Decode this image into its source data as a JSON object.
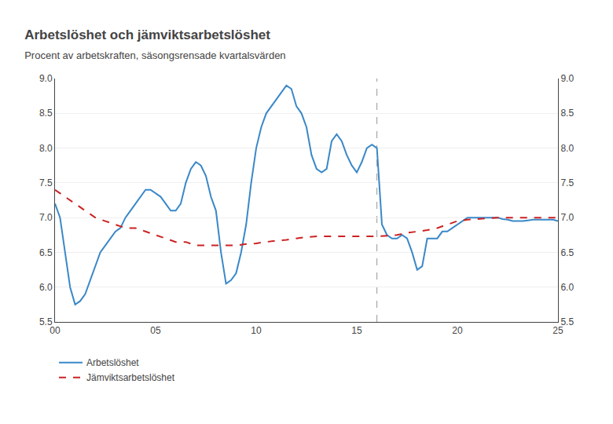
{
  "chart_data": {
    "type": "line",
    "title": "Arbetslöshet och jämviktsarbetslöshet",
    "subtitle": "Procent av arbetskraften, säsongsrensade kvartalsvärden",
    "xlim": [
      0,
      25
    ],
    "xticks": [
      {
        "value": 0,
        "label": "00"
      },
      {
        "value": 5,
        "label": "05"
      },
      {
        "value": 10,
        "label": "10"
      },
      {
        "value": 15,
        "label": "15"
      },
      {
        "value": 20,
        "label": "20"
      },
      {
        "value": 25,
        "label": "25"
      }
    ],
    "ylim": [
      5.5,
      9.0
    ],
    "yticks": [
      5.5,
      {
        "value": 6.0,
        "label": "6.0"
      },
      6.5,
      {
        "value": 7.0,
        "label": "7.0"
      },
      7.5,
      {
        "value": 8.0,
        "label": "8.0"
      },
      8.5,
      {
        "value": 9.0,
        "label": "9.0"
      }
    ],
    "y2lim": [
      5.5,
      9.0
    ],
    "y2ticks": [
      5.5,
      {
        "value": 6.0,
        "label": "6.0"
      },
      6.5,
      {
        "value": 7.0,
        "label": "7.0"
      },
      7.5,
      {
        "value": 8.0,
        "label": "8.0"
      },
      8.5,
      {
        "value": 9.0,
        "label": "9.0"
      }
    ],
    "grid": "y",
    "legend": "bottom",
    "vline_x": 16,
    "series": [
      {
        "name": "Arbetslöshet",
        "color": "#3a88c8",
        "line_style": "solid",
        "x": [
          0,
          0.25,
          0.5,
          0.75,
          1,
          1.25,
          1.5,
          1.75,
          2,
          2.25,
          2.5,
          2.75,
          3,
          3.25,
          3.5,
          3.75,
          4,
          4.25,
          4.5,
          4.75,
          5,
          5.25,
          5.5,
          5.75,
          6,
          6.25,
          6.5,
          6.75,
          7,
          7.25,
          7.5,
          7.75,
          8,
          8.25,
          8.5,
          8.75,
          9,
          9.25,
          9.5,
          9.75,
          10,
          10.25,
          10.5,
          10.75,
          11,
          11.25,
          11.5,
          11.75,
          12,
          12.25,
          12.5,
          12.75,
          13,
          13.25,
          13.5,
          13.75,
          14,
          14.25,
          14.5,
          14.75,
          15,
          15.25,
          15.5,
          15.75,
          16,
          16.25,
          16.5,
          16.75,
          17,
          17.25,
          17.5,
          17.75,
          18,
          18.25,
          18.5,
          18.75,
          19,
          19.25,
          19.5,
          19.75,
          20,
          20.25,
          20.5,
          20.75,
          21,
          21.25,
          21.5,
          21.75,
          22,
          22.25,
          22.5,
          22.75,
          23,
          23.25,
          23.5,
          23.75,
          24,
          24.25,
          24.5,
          24.75,
          25
        ],
        "values": [
          7.2,
          7.0,
          6.5,
          6.0,
          5.75,
          5.8,
          5.9,
          6.1,
          6.3,
          6.5,
          6.6,
          6.7,
          6.8,
          6.85,
          7.0,
          7.1,
          7.2,
          7.3,
          7.4,
          7.4,
          7.35,
          7.3,
          7.2,
          7.1,
          7.1,
          7.2,
          7.5,
          7.7,
          7.8,
          7.75,
          7.6,
          7.3,
          7.1,
          6.5,
          6.05,
          6.1,
          6.2,
          6.5,
          6.9,
          7.5,
          8.0,
          8.3,
          8.5,
          8.6,
          8.7,
          8.8,
          8.9,
          8.85,
          8.6,
          8.5,
          8.3,
          7.9,
          7.7,
          7.65,
          7.7,
          8.1,
          8.2,
          8.1,
          7.9,
          7.75,
          7.65,
          7.8,
          8.0,
          8.05,
          8.0,
          6.9,
          6.75,
          6.7,
          6.7,
          6.75,
          6.7,
          6.5,
          6.25,
          6.3,
          6.7,
          6.7,
          6.7,
          6.8,
          6.8,
          6.85,
          6.9,
          6.95,
          7.0,
          7.0,
          7.0,
          7.0,
          7.0,
          7.0,
          7.0,
          6.98,
          6.97,
          6.95,
          6.95,
          6.95,
          6.96,
          6.97,
          6.97,
          6.97,
          6.97,
          6.97,
          6.95
        ]
      },
      {
        "name": "Jämviktsarbetslöshet",
        "color": "#cc2222",
        "line_style": "dashed",
        "x": [
          0,
          0.5,
          1,
          1.5,
          2,
          2.5,
          3,
          3.5,
          4,
          4.5,
          5,
          5.5,
          6,
          6.5,
          7,
          7.5,
          8,
          8.5,
          9,
          9.5,
          10,
          10.5,
          11,
          11.5,
          12,
          12.5,
          13,
          13.5,
          14,
          14.5,
          15,
          15.5,
          16,
          16.5,
          17,
          17.5,
          18,
          18.5,
          19,
          19.5,
          20,
          20.5,
          21,
          21.5,
          22,
          22.5,
          23,
          23.5,
          24,
          24.5,
          25
        ],
        "values": [
          7.4,
          7.3,
          7.2,
          7.1,
          7.0,
          6.95,
          6.9,
          6.85,
          6.85,
          6.8,
          6.75,
          6.7,
          6.65,
          6.65,
          6.6,
          6.6,
          6.6,
          6.6,
          6.6,
          6.62,
          6.63,
          6.65,
          6.67,
          6.68,
          6.7,
          6.72,
          6.73,
          6.73,
          6.73,
          6.73,
          6.73,
          6.73,
          6.73,
          6.74,
          6.75,
          6.78,
          6.8,
          6.82,
          6.85,
          6.9,
          6.95,
          6.97,
          6.98,
          6.99,
          7.0,
          7.0,
          7.0,
          7.0,
          7.0,
          7.0,
          7.0
        ]
      }
    ]
  }
}
